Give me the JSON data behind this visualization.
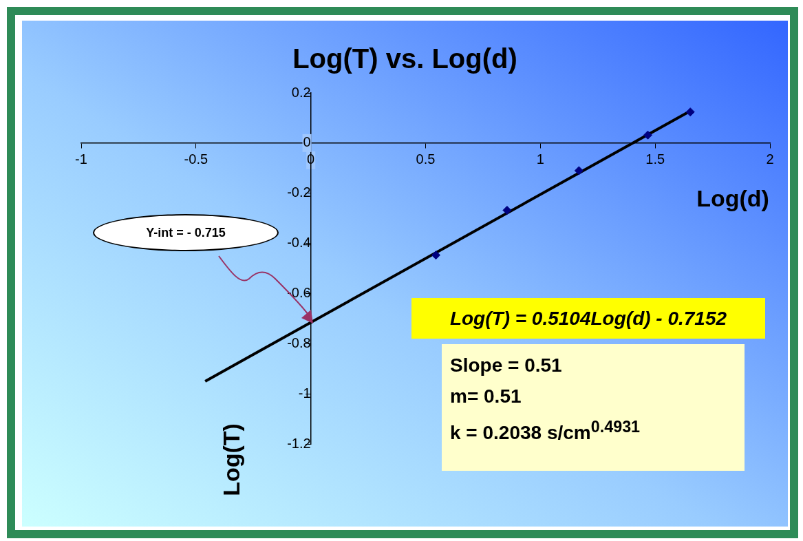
{
  "chart_data": {
    "type": "scatter",
    "title": "Log(T) vs. Log(d)",
    "xlabel": "Log(d)",
    "ylabel": "Log(T)",
    "series": [
      {
        "type": "scatter",
        "color": "#000080",
        "marker": "diamond",
        "x": [
          0.545,
          0.855,
          1.168,
          1.468,
          1.653
        ],
        "values": [
          -0.447,
          -0.268,
          -0.11,
          0.032,
          0.124
        ]
      },
      {
        "type": "line",
        "color": "#000000",
        "marker": "none",
        "x": [
          -0.46,
          1.653
        ],
        "values": [
          -0.95,
          0.128
        ]
      }
    ],
    "xlim": [
      -1,
      2
    ],
    "xticks": [
      -1,
      -0.5,
      0,
      0.5,
      1,
      1.5,
      2
    ],
    "ylim": [
      -1.2,
      0.2
    ],
    "yticks": [
      -1.2,
      -1,
      -0.8,
      -0.6,
      -0.4,
      -0.2,
      0,
      0.2
    ],
    "legend": false,
    "annotations": [
      "Y-int = - 0.715",
      "Log(T) = 0.5104Log(d) - 0.7152",
      "Slope = 0.51",
      "m= 0.51",
      "k = 0.2038 s/cm$^{0.4931}$"
    ]
  }
}
